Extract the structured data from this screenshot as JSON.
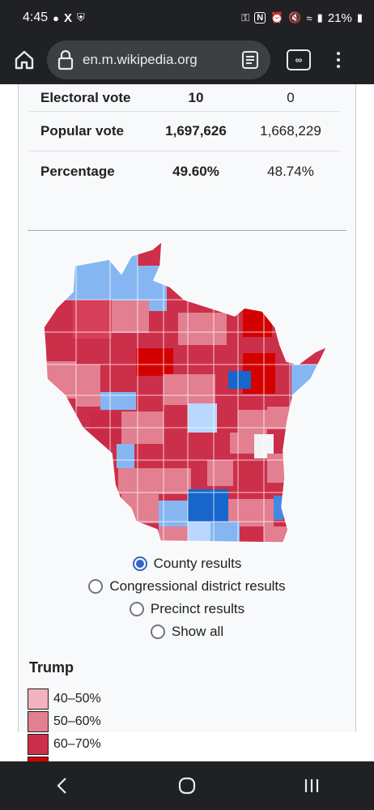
{
  "status": {
    "time": "4:45",
    "battery": "21%",
    "left_icons": [
      "chat-bubble-icon",
      "x-logo-icon",
      "shield-icon"
    ],
    "right_icons": [
      "key-icon",
      "nfc-icon",
      "alarm-icon",
      "mute-icon",
      "wifi-icon",
      "signal-icon",
      "battery-icon"
    ]
  },
  "browser": {
    "url": "en.m.wikipedia.org",
    "tabs_count_glyph": "∞"
  },
  "results_table": {
    "rows": [
      {
        "label": "Electoral vote",
        "c1": "10",
        "c2": "0"
      },
      {
        "label": "Popular vote",
        "c1": "1,697,626",
        "c2": "1,668,229"
      },
      {
        "label": "Percentage",
        "c1": "49.60%",
        "c2": "48.74%"
      }
    ]
  },
  "map_options": [
    {
      "label": "County results",
      "checked": true
    },
    {
      "label": "Congressional district results",
      "checked": false
    },
    {
      "label": "Precinct results",
      "checked": false
    },
    {
      "label": "Show all",
      "checked": false
    }
  ],
  "legend": {
    "title": "Trump",
    "items": [
      {
        "label": "40–50%",
        "color": "#f2b3be"
      },
      {
        "label": "50–60%",
        "color": "#e27f90"
      },
      {
        "label": "60–70%",
        "color": "#cc2f4a"
      },
      {
        "label": "",
        "color": "#d40000"
      }
    ]
  },
  "colors": {
    "r40": "#f2b3be",
    "r50": "#e27f90",
    "r60": "#cc2f4a",
    "r70": "#d40000",
    "d40": "#b9d7ff",
    "d50": "#86b6f2",
    "d60": "#4389e3",
    "d70": "#1666cb"
  }
}
